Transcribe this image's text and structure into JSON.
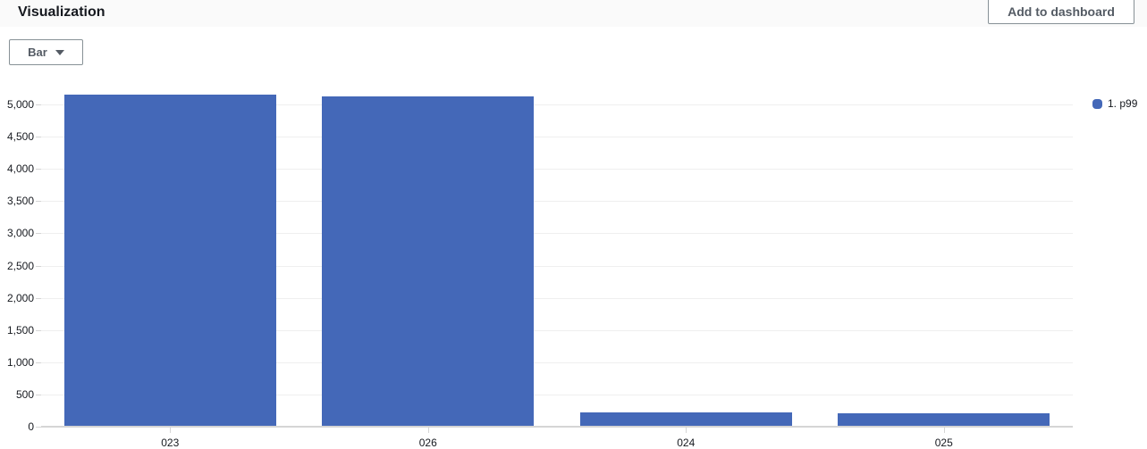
{
  "header": {
    "title": "Visualization",
    "add_to_dashboard_label": "Add to dashboard"
  },
  "controls": {
    "chart_type_value": "Bar"
  },
  "legend": {
    "items": [
      {
        "label": "1. p99",
        "color": "#4468b8"
      }
    ]
  },
  "chart_data": {
    "type": "bar",
    "title": "",
    "categories": [
      "023",
      "026",
      "024",
      "025"
    ],
    "series": [
      {
        "name": "1. p99",
        "color": "#4468b8",
        "values": [
          5150,
          5120,
          215,
          205
        ]
      }
    ],
    "xlabel": "",
    "ylabel": "",
    "ylim": [
      0,
      5000
    ],
    "ytick_interval": 500,
    "ytick_labels": [
      "0",
      "500",
      "1,000",
      "1,500",
      "2,000",
      "2,500",
      "3,000",
      "3,500",
      "4,000",
      "4,500",
      "5,000"
    ],
    "grid": true,
    "legend_position": "top-right"
  },
  "colors": {
    "bar": "#4468b8",
    "header_bg": "#fafafa",
    "title_text": "#16191f",
    "button_text": "#545b64",
    "control_border": "#879196",
    "gridline": "#efefef",
    "axis_line": "#d5d5d5",
    "tick": "#d5d5d5",
    "axis_label": "#16191f"
  }
}
